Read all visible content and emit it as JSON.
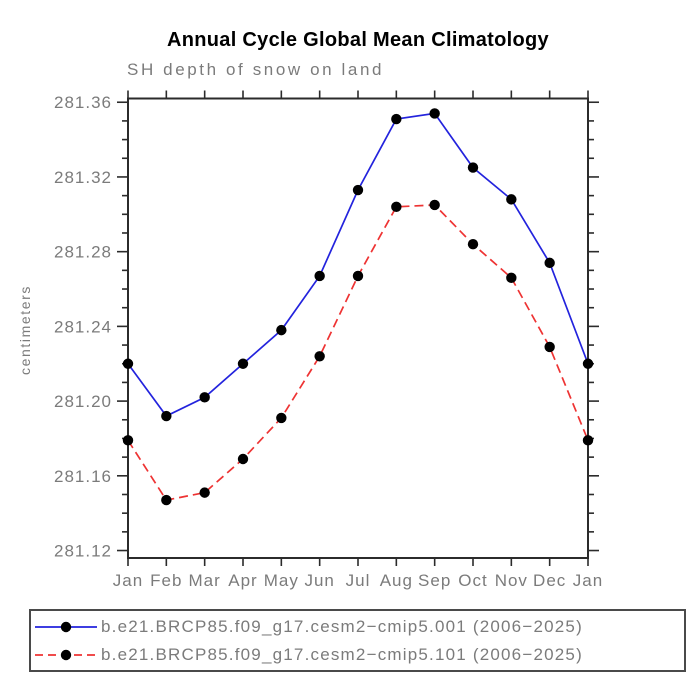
{
  "title": "Annual Cycle Global Mean Climatology",
  "subtitle": "SH depth of snow on land",
  "colors": {
    "background": "#ffffff",
    "axis": "#2b2b2b",
    "text_gray": "#7b7b7b",
    "title_text": "#000000",
    "series_blue": "#2323dd",
    "series_red": "#ee3333",
    "marker_black": "#000000"
  },
  "chart_data": {
    "type": "line",
    "title": "Annual Cycle Global Mean Climatology",
    "subtitle": "SH depth of snow on land",
    "xlabel": "",
    "ylabel": "centimeters",
    "categories": [
      "Jan",
      "Feb",
      "Mar",
      "Apr",
      "May",
      "Jun",
      "Jul",
      "Aug",
      "Sep",
      "Oct",
      "Nov",
      "Dec",
      "Jan"
    ],
    "ylim": [
      281.116,
      281.362
    ],
    "yticks": [
      281.12,
      281.16,
      281.2,
      281.24,
      281.28,
      281.32,
      281.36
    ],
    "ytick_decimals": 2,
    "minor_tick_step": 0.01,
    "grid": false,
    "legend_position": "bottom",
    "marker": {
      "shape": "circle",
      "color": "#000000",
      "radius": 5.2
    },
    "series": [
      {
        "name": "b.e21.BRCP85.f09_g17.cesm2−cmip5.001 (2006−2025)",
        "color": "#2323dd",
        "style": "solid",
        "values": [
          281.22,
          281.192,
          281.202,
          281.22,
          281.238,
          281.267,
          281.313,
          281.351,
          281.354,
          281.325,
          281.308,
          281.274,
          281.22
        ]
      },
      {
        "name": "b.e21.BRCP85.f09_g17.cesm2−cmip5.101 (2006−2025)",
        "color": "#ee3333",
        "style": "dashed",
        "values": [
          281.179,
          281.147,
          281.151,
          281.169,
          281.191,
          281.224,
          281.267,
          281.304,
          281.305,
          281.284,
          281.266,
          281.229,
          281.179
        ]
      }
    ]
  }
}
